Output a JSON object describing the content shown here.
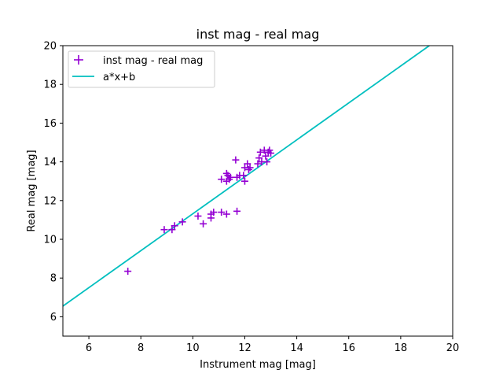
{
  "chart_data": {
    "type": "scatter",
    "title": "inst mag - real mag",
    "xlabel": "Instrument mag [mag]",
    "ylabel": "Real mag [mag]",
    "xlim": [
      5,
      20
    ],
    "ylim": [
      5,
      20
    ],
    "xticks": [
      6,
      8,
      10,
      12,
      14,
      16,
      18,
      20
    ],
    "yticks": [
      6,
      8,
      10,
      12,
      14,
      16,
      18,
      20
    ],
    "grid": false,
    "legend_position": "top-left",
    "series": [
      {
        "name": "inst mag - real mag",
        "kind": "scatter",
        "marker": "plus",
        "color": "#9400d3",
        "points": [
          [
            7.5,
            8.35
          ],
          [
            8.9,
            10.5
          ],
          [
            9.2,
            10.5
          ],
          [
            9.3,
            10.7
          ],
          [
            9.6,
            10.9
          ],
          [
            10.2,
            11.2
          ],
          [
            10.4,
            10.8
          ],
          [
            10.7,
            11.1
          ],
          [
            10.7,
            11.3
          ],
          [
            10.8,
            11.4
          ],
          [
            11.1,
            11.4
          ],
          [
            11.3,
            11.3
          ],
          [
            11.7,
            11.45
          ],
          [
            11.1,
            13.1
          ],
          [
            11.3,
            13.0
          ],
          [
            11.35,
            13.3
          ],
          [
            11.3,
            13.4
          ],
          [
            11.4,
            13.1
          ],
          [
            11.45,
            13.2
          ],
          [
            11.65,
            14.1
          ],
          [
            11.7,
            13.2
          ],
          [
            11.8,
            13.3
          ],
          [
            11.95,
            13.3
          ],
          [
            12.0,
            13.0
          ],
          [
            12.0,
            13.7
          ],
          [
            12.1,
            13.9
          ],
          [
            12.15,
            13.6
          ],
          [
            12.2,
            13.7
          ],
          [
            12.5,
            13.9
          ],
          [
            12.55,
            14.2
          ],
          [
            12.6,
            14.5
          ],
          [
            12.65,
            14.0
          ],
          [
            12.75,
            14.6
          ],
          [
            12.8,
            14.3
          ],
          [
            12.85,
            14.0
          ],
          [
            12.9,
            14.5
          ],
          [
            12.95,
            14.6
          ],
          [
            13.0,
            14.45
          ]
        ]
      },
      {
        "name": "a*x+b",
        "kind": "line",
        "color": "#00bfbf",
        "x": [
          5,
          19.1
        ],
        "y": [
          6.55,
          20.0
        ]
      }
    ]
  }
}
